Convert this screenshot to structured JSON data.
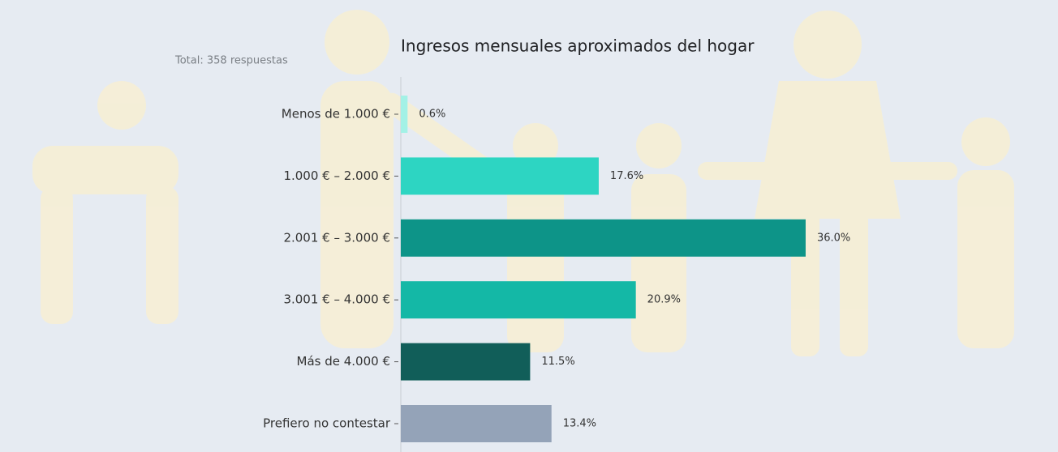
{
  "chart_data": {
    "type": "bar",
    "orientation": "horizontal",
    "title": "Ingresos mensuales aproximados del hogar",
    "subtitle": "Total: 358 respuestas",
    "categories": [
      "Menos de 1.000 €",
      "1.000 € – 2.000 €",
      "2.001 € – 3.000 €",
      "3.001 € – 4.000 €",
      "Más de 4.000 €",
      "Prefiero no contestar"
    ],
    "values": [
      0.6,
      17.6,
      36.0,
      20.9,
      11.5,
      13.4
    ],
    "value_labels": [
      "0.6%",
      "17.6%",
      "36.0%",
      "20.9%",
      "11.5%",
      "13.4%"
    ],
    "colors": [
      "#a3f1e6",
      "#2dd5c2",
      "#0d9488",
      "#14b8a6",
      "#115e59",
      "#94a3b8"
    ]
  }
}
